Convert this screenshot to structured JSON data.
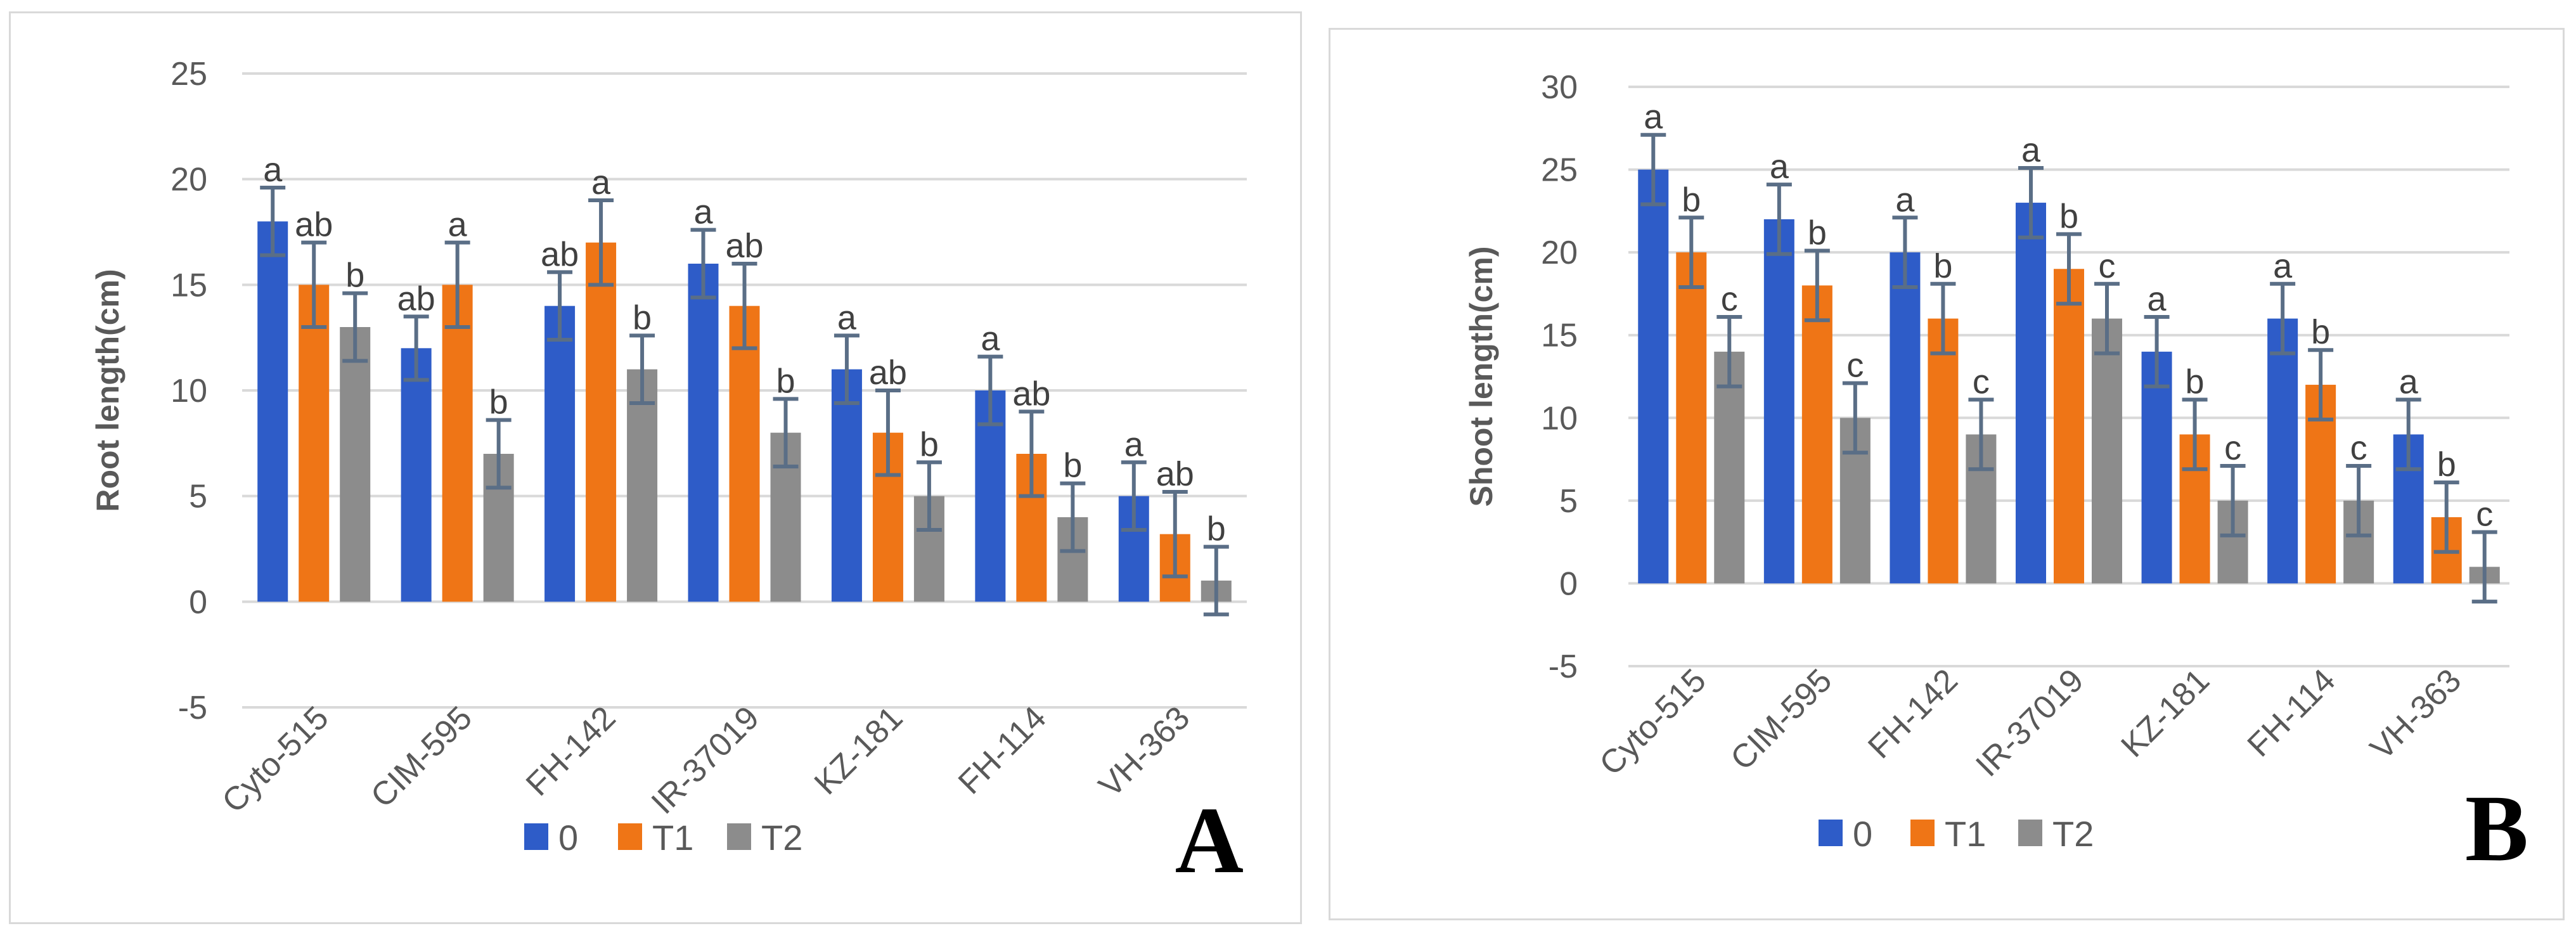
{
  "chart_data": [
    {
      "type": "bar",
      "panel_label": "A",
      "title": "",
      "xlabel": "",
      "ylabel": "Root length(cm)",
      "ylim": [
        -5,
        25
      ],
      "yticks": [
        -5,
        0,
        5,
        10,
        15,
        20,
        25
      ],
      "grid": true,
      "legend_position": "bottom",
      "categories": [
        "Cyto-515",
        "CIM-595",
        "FH-142",
        "IR-37019",
        "KZ-181",
        "FH-114",
        "VH-363"
      ],
      "series": [
        {
          "name": "0",
          "color": "#2e5cc8",
          "values": [
            18,
            12,
            14,
            16,
            11,
            10,
            5
          ],
          "errors": [
            1.6,
            1.5,
            1.6,
            1.6,
            1.6,
            1.6,
            1.6
          ],
          "letters": [
            "a",
            "ab",
            "ab",
            "a",
            "a",
            "a",
            "a"
          ]
        },
        {
          "name": "T1",
          "color": "#ef7516",
          "values": [
            15,
            15,
            17,
            14,
            8,
            7,
            3.2
          ],
          "errors": [
            2.0,
            2.0,
            2.0,
            2.0,
            2.0,
            2.0,
            2.0
          ],
          "letters": [
            "ab",
            "a",
            "a",
            "ab",
            "ab",
            "ab",
            "ab"
          ]
        },
        {
          "name": "T2",
          "color": "#8c8c8c",
          "values": [
            13,
            7,
            11,
            8,
            5,
            4,
            1
          ],
          "errors": [
            1.6,
            1.6,
            1.6,
            1.6,
            1.6,
            1.6,
            1.6
          ],
          "letters": [
            "b",
            "b",
            "b",
            "b",
            "b",
            "b",
            "b"
          ]
        }
      ]
    },
    {
      "type": "bar",
      "panel_label": "B",
      "title": "",
      "xlabel": "",
      "ylabel": "Shoot length(cm)",
      "ylim": [
        -5,
        30
      ],
      "yticks": [
        -5,
        0,
        5,
        10,
        15,
        20,
        25,
        30
      ],
      "grid": true,
      "legend_position": "bottom",
      "categories": [
        "Cyto-515",
        "CIM-595",
        "FH-142",
        "IR-37019",
        "KZ-181",
        "FH-114",
        "VH-363"
      ],
      "series": [
        {
          "name": "0",
          "color": "#2e5cc8",
          "values": [
            25,
            22,
            20,
            23,
            14,
            16,
            9
          ],
          "errors": [
            2.1,
            2.1,
            2.1,
            2.1,
            2.1,
            2.1,
            2.1
          ],
          "letters": [
            "a",
            "a",
            "a",
            "a",
            "a",
            "a",
            "a"
          ]
        },
        {
          "name": "T1",
          "color": "#ef7516",
          "values": [
            20,
            18,
            16,
            19,
            9,
            12,
            4
          ],
          "errors": [
            2.1,
            2.1,
            2.1,
            2.1,
            2.1,
            2.1,
            2.1
          ],
          "letters": [
            "b",
            "b",
            "b",
            "b",
            "b",
            "b",
            "b"
          ]
        },
        {
          "name": "T2",
          "color": "#8c8c8c",
          "values": [
            14,
            10,
            9,
            16,
            5,
            5,
            1
          ],
          "errors": [
            2.1,
            2.1,
            2.1,
            2.1,
            2.1,
            2.1,
            2.1
          ],
          "letters": [
            "c",
            "c",
            "c",
            "c",
            "c",
            "c",
            "c"
          ]
        }
      ]
    }
  ]
}
